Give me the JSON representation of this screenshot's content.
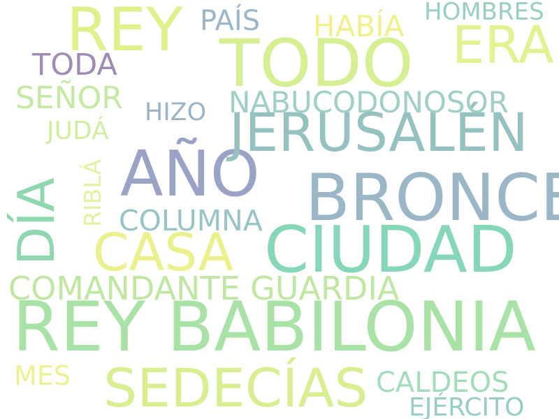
{
  "words": [
    {
      "text": "REY BABILONIA",
      "color": "#a9e2a6"
    },
    {
      "text": "TODO",
      "color": "#d6ef92"
    },
    {
      "text": "REY",
      "color": "#e1f08a"
    },
    {
      "text": "BRONCE",
      "color": "#9ab6c7"
    },
    {
      "text": "CIUDAD",
      "color": "#86d6b8"
    },
    {
      "text": "AÑO",
      "color": "#9aa3c6"
    },
    {
      "text": "JERUSALÉN",
      "color": "#95c2c1"
    },
    {
      "text": "SEDECÍAS",
      "color": "#d8ee90"
    },
    {
      "text": "CASA",
      "color": "#ebf18a"
    },
    {
      "text": "ERA",
      "color": "#e3f290"
    },
    {
      "text": "DÍA",
      "color": "#8fd7ae"
    },
    {
      "text": "COMANDANTE GUARDIA",
      "color": "#bfe7a2"
    },
    {
      "text": "NABUCODONOSOR",
      "color": "#9fcfc6"
    },
    {
      "text": "COLUMNA",
      "color": "#98c4c6"
    },
    {
      "text": "SEÑOR",
      "color": "#c4e9a3"
    },
    {
      "text": "CALDEOS",
      "color": "#a1dcbb"
    },
    {
      "text": "EJÉRCITO",
      "color": "#97cdc6"
    },
    {
      "text": "HOMBRES",
      "color": "#99cfc2"
    },
    {
      "text": "HABÍA",
      "color": "#f0f08c"
    },
    {
      "text": "PAÍS",
      "color": "#9cb5c8"
    },
    {
      "text": "TODA",
      "color": "#a08bb6"
    },
    {
      "text": "HIZO",
      "color": "#9bb3c6"
    },
    {
      "text": "JUDÁ",
      "color": "#d1eea0"
    },
    {
      "text": "RIBLÁ",
      "color": "#e6f0a0"
    },
    {
      "text": "MES",
      "color": "#edf091"
    }
  ]
}
